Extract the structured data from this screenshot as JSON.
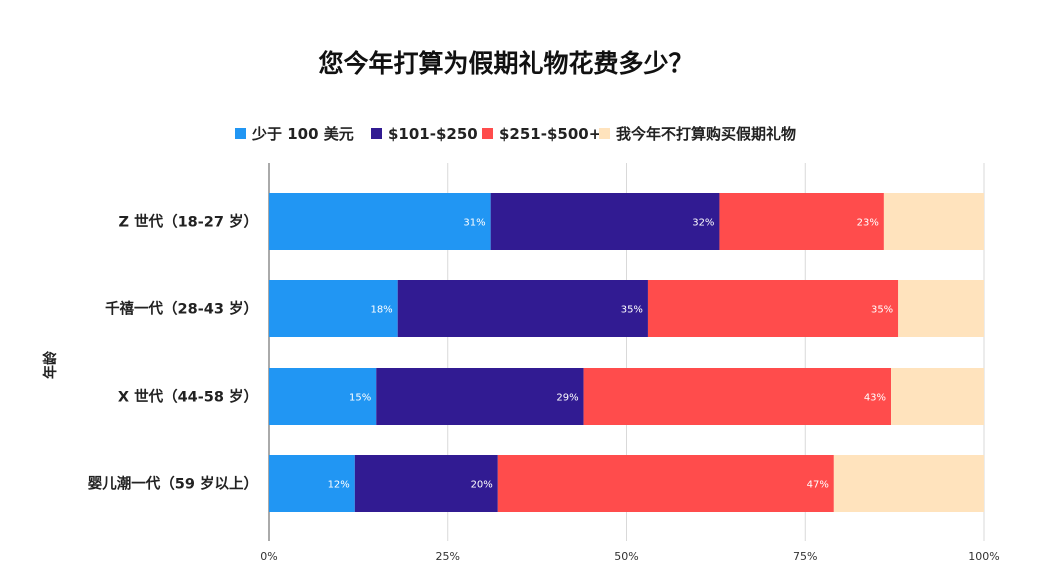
{
  "chart_data": {
    "type": "bar",
    "orientation": "horizontal",
    "stacked": "percent",
    "title": "您今年打算为假期礼物花费多少？",
    "ylabel": "年龄",
    "xlabel": "",
    "categories": [
      "Z 世代（18-27 岁）",
      "千禧一代（28-43 岁）",
      "X 世代（44-58 岁）",
      "婴儿潮一代（59 岁以上）"
    ],
    "series": [
      {
        "name": "少于 100 美元",
        "color": "#2196f3",
        "values": [
          31,
          18,
          15,
          12
        ],
        "labels": [
          "31%",
          "18%",
          "15%",
          "12%"
        ]
      },
      {
        "name": "$101-$250",
        "color": "#311b92",
        "values": [
          32,
          35,
          29,
          20
        ],
        "labels": [
          "32%",
          "35%",
          "29%",
          "20%"
        ]
      },
      {
        "name": "$251-$500+",
        "color": "#ff4c4c",
        "values": [
          23,
          35,
          43,
          47
        ],
        "labels": [
          "23%",
          "35%",
          "43%",
          "47%"
        ]
      },
      {
        "name": "我今年不打算购买假期礼物",
        "color": "#ffe3bd",
        "values": [
          14,
          12,
          13,
          21
        ],
        "labels": [
          "",
          "",
          "",
          ""
        ]
      }
    ],
    "xlim": [
      0,
      100
    ],
    "xticks": [
      "0%",
      "25%",
      "50%",
      "75%",
      "100%"
    ],
    "grid": true,
    "legend": "top"
  }
}
